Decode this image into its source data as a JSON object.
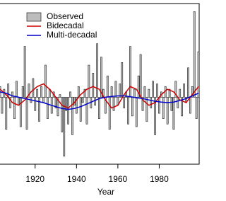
{
  "chart_data": {
    "type": "bar-line",
    "xlabel": "Year",
    "xlim": [
      1903,
      2000
    ],
    "ylim": [
      -2.5,
      3.5
    ],
    "xticks": [
      1920,
      1940,
      1960,
      1980
    ],
    "x": [
      1903,
      1904,
      1905,
      1906,
      1907,
      1908,
      1909,
      1910,
      1911,
      1912,
      1913,
      1914,
      1915,
      1916,
      1917,
      1918,
      1919,
      1920,
      1921,
      1922,
      1923,
      1924,
      1925,
      1926,
      1927,
      1928,
      1929,
      1930,
      1931,
      1932,
      1933,
      1934,
      1935,
      1936,
      1937,
      1938,
      1939,
      1940,
      1941,
      1942,
      1943,
      1944,
      1945,
      1946,
      1947,
      1948,
      1949,
      1950,
      1951,
      1952,
      1953,
      1954,
      1955,
      1956,
      1957,
      1958,
      1959,
      1960,
      1961,
      1962,
      1963,
      1964,
      1965,
      1966,
      1967,
      1968,
      1969,
      1970,
      1971,
      1972,
      1973,
      1974,
      1975,
      1976,
      1977,
      1978,
      1979,
      1980,
      1981,
      1982,
      1983,
      1984,
      1985,
      1986,
      1987,
      1988,
      1989,
      1990,
      1991,
      1992,
      1993,
      1994,
      1995,
      1996,
      1997,
      1998,
      1999
    ],
    "series": [
      {
        "name": "Observed",
        "type": "bar",
        "color": "#bdbdbd",
        "values": [
          0.4,
          -0.6,
          0.3,
          -1.2,
          0.5,
          -0.4,
          0.2,
          -0.8,
          0.6,
          -0.3,
          -1.1,
          0.4,
          1.9,
          -1.2,
          0.5,
          -0.2,
          0.7,
          -0.5,
          0.3,
          -0.9,
          0.4,
          -0.2,
          1.2,
          -0.8,
          0.3,
          -0.6,
          0.2,
          -0.4,
          -0.7,
          0.1,
          -1.3,
          -2.2,
          -0.5,
          -1.0,
          0.2,
          -1.4,
          -0.3,
          -0.6,
          0.4,
          -0.9,
          -0.2,
          0.3,
          -1.0,
          1.2,
          -0.4,
          0.9,
          -0.3,
          2.0,
          -0.8,
          1.5,
          0.3,
          -0.6,
          0.8,
          -1.2,
          0.4,
          -0.5,
          0.6,
          -0.3,
          0.5,
          1.3,
          -0.4,
          0.2,
          -1.0,
          1.9,
          -0.7,
          0.3,
          -1.1,
          0.8,
          1.6,
          -0.5,
          0.4,
          -0.9,
          0.3,
          -0.4,
          0.6,
          -1.4,
          0.5,
          -0.6,
          0.2,
          -0.8,
          0.4,
          -1.0,
          0.3,
          -0.5,
          -1.2,
          0.6,
          -0.4,
          0.3,
          -0.7,
          0.5,
          -0.2,
          1.1,
          -0.6,
          0.4,
          3.2,
          -0.8,
          1.7
        ]
      },
      {
        "name": "Bidecadal",
        "type": "line",
        "color": "#cc0000",
        "x": [
          1903,
          1906,
          1909,
          1912,
          1915,
          1918,
          1921,
          1924,
          1927,
          1930,
          1933,
          1936,
          1939,
          1942,
          1945,
          1948,
          1951,
          1954,
          1957,
          1960,
          1963,
          1966,
          1969,
          1972,
          1975,
          1978,
          1981,
          1984,
          1987,
          1990,
          1993,
          1996,
          1999
        ],
        "values": [
          0.3,
          0.1,
          -0.2,
          -0.3,
          -0.1,
          0.2,
          0.4,
          0.5,
          0.3,
          0.0,
          -0.3,
          -0.4,
          -0.2,
          0.1,
          0.3,
          0.4,
          0.3,
          -0.1,
          -0.4,
          -0.3,
          0.1,
          0.4,
          0.3,
          -0.1,
          -0.3,
          -0.2,
          0.1,
          0.3,
          0.2,
          -0.1,
          -0.2,
          0.1,
          0.4
        ]
      },
      {
        "name": "Multi-decadal",
        "type": "line",
        "color": "#0000cc",
        "x": [
          1903,
          1906,
          1909,
          1912,
          1915,
          1918,
          1921,
          1924,
          1927,
          1930,
          1933,
          1936,
          1939,
          1942,
          1945,
          1948,
          1951,
          1954,
          1957,
          1960,
          1963,
          1966,
          1969,
          1972,
          1975,
          1978,
          1981,
          1984,
          1987,
          1990,
          1993,
          1996,
          1999
        ],
        "values": [
          0.2,
          0.15,
          0.05,
          0.0,
          -0.05,
          -0.1,
          -0.15,
          -0.2,
          -0.28,
          -0.35,
          -0.42,
          -0.45,
          -0.42,
          -0.35,
          -0.25,
          -0.15,
          -0.05,
          0.0,
          0.03,
          0.05,
          0.05,
          0.02,
          -0.02,
          -0.05,
          -0.1,
          -0.15,
          -0.18,
          -0.2,
          -0.18,
          -0.12,
          -0.05,
          0.05,
          0.15
        ]
      }
    ]
  }
}
